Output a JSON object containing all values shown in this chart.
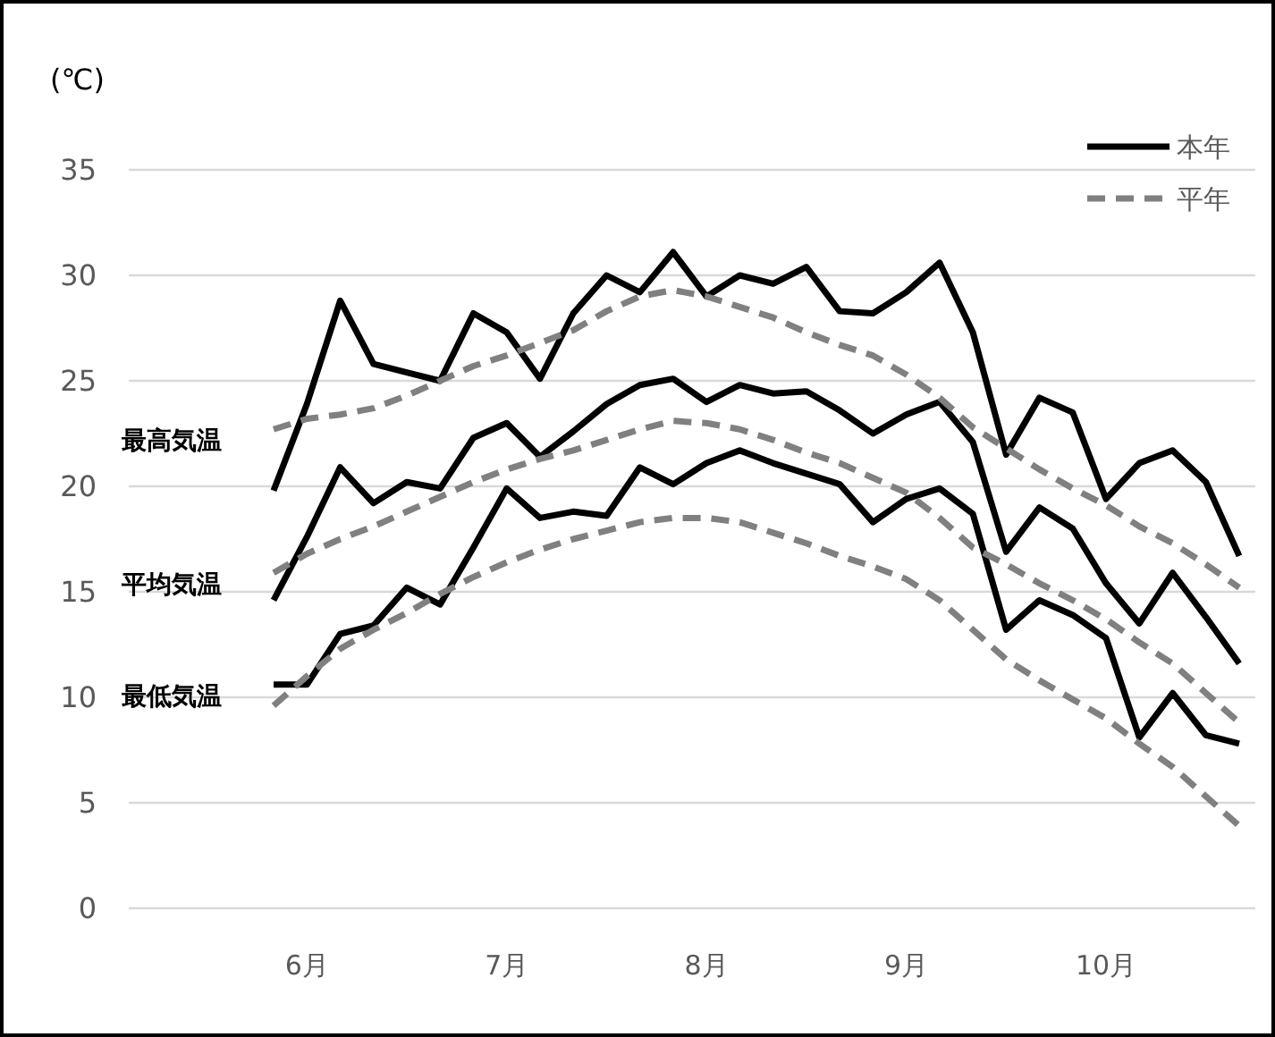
{
  "chart_data": {
    "type": "line",
    "ylabel": "(℃)",
    "categories": [
      null,
      "6月",
      null,
      null,
      null,
      null,
      null,
      "7月",
      null,
      null,
      null,
      null,
      null,
      "8月",
      null,
      null,
      null,
      null,
      null,
      "9月",
      null,
      null,
      null,
      null,
      null,
      "10月",
      null,
      null,
      null,
      null
    ],
    "ylim": [
      0,
      35
    ],
    "yticks": [
      0,
      5,
      10,
      15,
      20,
      25,
      30,
      35
    ],
    "grid": "y",
    "legend": "top right",
    "marker": "none",
    "series": [
      {
        "name": "本年",
        "color": "#000000",
        "line_style": "solid",
        "values": [
          19.8,
          23.9,
          28.8,
          25.8,
          25.4,
          25.0,
          28.2,
          27.3,
          25.1,
          28.2,
          30.0,
          29.2,
          31.1,
          29.0,
          30.0,
          29.6,
          30.4,
          28.3,
          28.2,
          29.2,
          30.6,
          27.3,
          21.5,
          24.2,
          23.5,
          19.4,
          21.1,
          21.7,
          20.2,
          16.7
        ]
      },
      {
        "color": "#000000",
        "line_style": "solid",
        "values": [
          14.6,
          17.6,
          20.9,
          19.2,
          20.2,
          19.9,
          22.3,
          23.0,
          21.4,
          22.6,
          23.9,
          24.8,
          25.1,
          24.0,
          24.8,
          24.4,
          24.5,
          23.6,
          22.5,
          23.4,
          24.0,
          22.1,
          16.9,
          19.0,
          18.0,
          15.4,
          13.5,
          15.9,
          13.8,
          11.6
        ]
      },
      {
        "color": "#000000",
        "line_style": "solid",
        "values": [
          10.6,
          10.6,
          13.0,
          13.4,
          15.2,
          14.4,
          17.1,
          19.9,
          18.5,
          18.8,
          18.6,
          20.9,
          20.1,
          21.1,
          21.7,
          21.1,
          20.6,
          20.1,
          18.3,
          19.4,
          19.9,
          18.7,
          13.2,
          14.6,
          13.9,
          12.8,
          8.1,
          10.2,
          8.2,
          7.8
        ]
      },
      {
        "name": "平年",
        "color": "#808080",
        "line_style": "dashed",
        "values": [
          22.7,
          23.2,
          23.4,
          23.7,
          24.3,
          25.0,
          25.7,
          26.2,
          26.8,
          27.4,
          28.3,
          29.0,
          29.3,
          29.0,
          28.5,
          28.0,
          27.3,
          26.7,
          26.2,
          25.3,
          24.2,
          22.8,
          21.8,
          20.8,
          19.9,
          19.1,
          18.1,
          17.3,
          16.3,
          15.2
        ]
      },
      {
        "color": "#808080",
        "line_style": "dashed",
        "values": [
          15.9,
          16.8,
          17.5,
          18.1,
          18.8,
          19.5,
          20.2,
          20.8,
          21.3,
          21.7,
          22.2,
          22.7,
          23.1,
          23.0,
          22.7,
          22.2,
          21.6,
          21.1,
          20.4,
          19.7,
          18.5,
          17.1,
          16.3,
          15.4,
          14.6,
          13.7,
          12.6,
          11.6,
          10.2,
          8.8
        ]
      },
      {
        "color": "#808080",
        "line_style": "dashed",
        "values": [
          9.6,
          11.0,
          12.3,
          13.2,
          14.0,
          14.9,
          15.7,
          16.4,
          17.0,
          17.5,
          17.9,
          18.3,
          18.5,
          18.5,
          18.3,
          17.8,
          17.3,
          16.7,
          16.2,
          15.6,
          14.6,
          13.2,
          11.8,
          10.8,
          9.9,
          9.0,
          7.8,
          6.7,
          5.3,
          3.9
        ]
      }
    ],
    "annotations": [
      "最高気温",
      "平均気温",
      "最低気温"
    ]
  }
}
